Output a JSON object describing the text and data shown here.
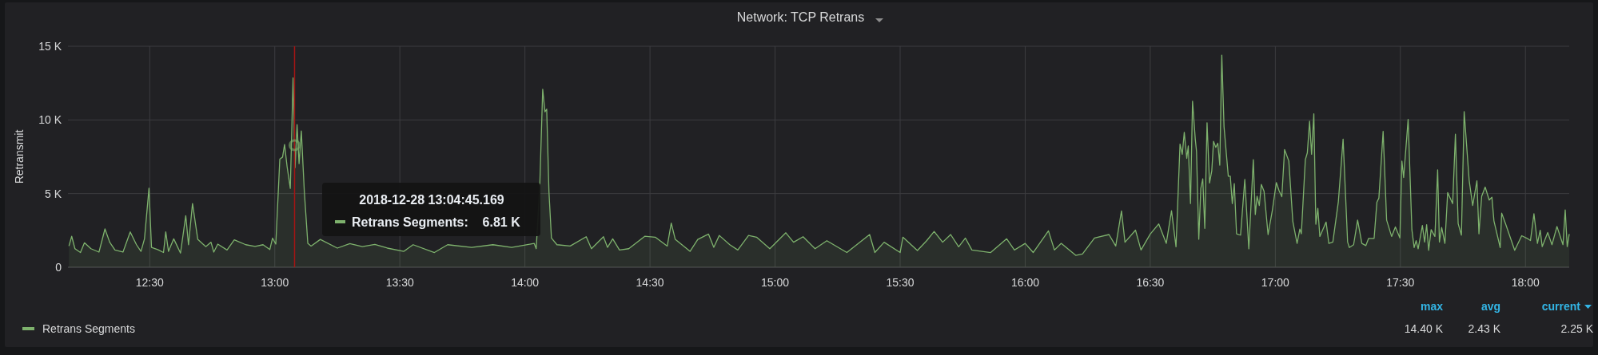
{
  "chart_data": {
    "type": "area",
    "title": "Network: TCP Retrans",
    "ylabel": "Retransmit",
    "x": [
      12.177,
      12.188,
      12.201,
      12.223,
      12.239,
      12.265,
      12.297,
      12.321,
      12.34,
      12.361,
      12.393,
      12.422,
      12.447,
      12.465,
      12.479,
      12.497,
      12.507,
      12.532,
      12.555,
      12.564,
      12.575,
      12.596,
      12.623,
      12.644,
      12.655,
      12.671,
      12.692,
      12.724,
      12.745,
      12.756,
      12.772,
      12.809,
      12.838,
      12.884,
      12.921,
      12.953,
      12.98,
      12.991,
      13.004,
      13.02,
      13.031,
      13.039,
      13.049,
      13.062,
      13.073,
      13.081,
      13.089,
      13.097,
      13.106,
      13.118,
      13.132,
      13.145,
      13.182,
      13.25,
      13.3,
      13.35,
      13.4,
      13.45,
      13.516,
      13.553,
      13.638,
      13.691,
      13.787,
      13.872,
      13.947,
      14.037,
      14.045,
      14.059,
      14.071,
      14.08,
      14.087,
      14.096,
      14.106,
      14.128,
      14.181,
      14.245,
      14.266,
      14.314,
      14.33,
      14.351,
      14.378,
      14.415,
      14.479,
      14.521,
      14.569,
      14.585,
      14.601,
      14.66,
      14.691,
      14.734,
      14.755,
      14.777,
      14.819,
      14.851,
      14.894,
      14.926,
      14.979,
      15.043,
      15.074,
      15.112,
      15.16,
      15.207,
      15.287,
      15.378,
      15.399,
      15.436,
      15.5,
      15.511,
      15.569,
      15.606,
      15.636,
      15.67,
      15.702,
      15.734,
      15.761,
      15.787,
      15.862,
      15.926,
      15.957,
      16.0,
      16.032,
      16.093,
      16.117,
      16.144,
      16.202,
      16.229,
      16.277,
      16.335,
      16.362,
      16.385,
      16.399,
      16.441,
      16.463,
      16.5,
      16.534,
      16.564,
      16.585,
      16.603,
      16.619,
      16.628,
      16.636,
      16.646,
      16.652,
      16.661,
      16.669,
      16.68,
      16.685,
      16.694,
      16.702,
      16.71,
      16.718,
      16.727,
      16.737,
      16.746,
      16.753,
      16.762,
      16.77,
      16.778,
      16.786,
      16.795,
      16.812,
      16.82,
      16.828,
      16.836,
      16.845,
      16.861,
      16.878,
      16.894,
      16.912,
      16.92,
      16.927,
      16.936,
      16.944,
      16.955,
      16.971,
      16.988,
      17.004,
      17.015,
      17.026,
      17.037,
      17.054,
      17.07,
      17.087,
      17.098,
      17.104,
      17.12,
      17.128,
      17.137,
      17.145,
      17.154,
      17.162,
      17.17,
      17.178,
      17.203,
      17.214,
      17.23,
      17.252,
      17.271,
      17.289,
      17.296,
      17.313,
      17.329,
      17.346,
      17.362,
      17.373,
      17.395,
      17.406,
      17.414,
      17.431,
      17.445,
      17.465,
      17.48,
      17.498,
      17.506,
      17.513,
      17.531,
      17.546,
      17.555,
      17.563,
      17.571,
      17.588,
      17.597,
      17.605,
      17.613,
      17.623,
      17.638,
      17.649,
      17.656,
      17.665,
      17.678,
      17.689,
      17.709,
      17.72,
      17.731,
      17.744,
      17.755,
      17.775,
      17.789,
      17.806,
      17.814,
      17.825,
      17.839,
      17.855,
      17.866,
      17.874,
      17.899,
      17.905,
      17.921,
      17.94,
      17.957,
      17.985,
      18.007,
      18.02,
      18.034,
      18.048,
      18.059,
      18.067,
      18.089,
      18.106,
      18.126,
      18.15,
      18.159,
      18.167,
      18.175
    ],
    "series": [
      {
        "name": "Retrans Segments",
        "color": "#7eb26d",
        "values": [
          1.44,
          2.1,
          1.26,
          1.0,
          1.66,
          1.26,
          1.03,
          2.6,
          1.7,
          1.17,
          1.03,
          2.4,
          1.53,
          1.08,
          1.93,
          5.37,
          1.35,
          1.2,
          1.0,
          2.4,
          1.08,
          1.93,
          0.96,
          3.5,
          1.53,
          4.33,
          1.9,
          1.4,
          1.7,
          1.03,
          1.57,
          1.17,
          1.86,
          1.53,
          1.42,
          1.53,
          1.2,
          1.98,
          1.57,
          7.34,
          7.48,
          8.33,
          6.85,
          5.35,
          12.85,
          6.76,
          9.68,
          7.03,
          9.25,
          5.14,
          1.62,
          1.44,
          1.89,
          1.3,
          1.6,
          1.4,
          1.55,
          1.3,
          1.08,
          1.53,
          1.0,
          1.53,
          1.35,
          1.53,
          1.35,
          1.62,
          1.26,
          5.32,
          12.08,
          10.55,
          10.73,
          5.14,
          1.98,
          1.53,
          1.44,
          2.07,
          1.26,
          2.07,
          1.35,
          1.93,
          1.17,
          1.26,
          2.1,
          2.04,
          1.44,
          3.0,
          1.89,
          1.08,
          1.89,
          2.25,
          1.35,
          2.16,
          1.53,
          1.17,
          2.16,
          2.04,
          1.26,
          2.34,
          1.7,
          2.07,
          1.26,
          1.8,
          1.0,
          2.22,
          1.0,
          1.7,
          1.0,
          2.04,
          1.14,
          1.8,
          2.43,
          1.7,
          2.22,
          1.39,
          1.98,
          1.17,
          1.0,
          1.93,
          1.17,
          1.62,
          1.0,
          2.47,
          1.17,
          1.62,
          0.81,
          0.9,
          1.98,
          2.22,
          1.44,
          3.82,
          1.7,
          2.52,
          1.17,
          2.25,
          2.94,
          1.62,
          3.84,
          1.39,
          8.36,
          7.67,
          9.16,
          7.39,
          8.23,
          4.32,
          11.27,
          8.7,
          7.86,
          1.9,
          5.34,
          6.0,
          2.64,
          9.81,
          5.72,
          6.55,
          8.55,
          8.14,
          8.42,
          6.93,
          14.4,
          9.53,
          6.18,
          6.18,
          4.32,
          5.68,
          2.27,
          2.18,
          5.96,
          1.25,
          7.3,
          3.58,
          4.82,
          4.19,
          5.62,
          5.16,
          2.22,
          3.85,
          5.75,
          5.2,
          4.79,
          7.99,
          7.21,
          3.11,
          1.62,
          2.59,
          2.27,
          7.3,
          7.77,
          9.91,
          7.67,
          10.41,
          2.92,
          4.0,
          2.09,
          3.07,
          1.62,
          1.71,
          4.45,
          8.7,
          1.71,
          1.34,
          1.53,
          3.2,
          1.62,
          1.47,
          1.96,
          1.96,
          4.41,
          4.69,
          9.22,
          3.2,
          2.09,
          2.74,
          1.99,
          7.21,
          6.09,
          10.04,
          2.55,
          1.34,
          1.81,
          1.25,
          2.83,
          1.71,
          2.89,
          1.15,
          2.55,
          2.09,
          6.61,
          1.71,
          2.7,
          1.62,
          5.07,
          4.32,
          9.03,
          2.96,
          2.18,
          10.56,
          5.9,
          4.19,
          5.87,
          2.27,
          4.82,
          5.44,
          4.56,
          4.75,
          3.15,
          1.34,
          3.67,
          2.92,
          1.99,
          1.15,
          2.14,
          1.96,
          1.81,
          3.63,
          1.62,
          2.51,
          1.4,
          2.36,
          1.53,
          2.77,
          1.53,
          3.89,
          1.4,
          2.25
        ]
      }
    ],
    "xlim": [
      12.173,
      18.175
    ],
    "xticks": [
      {
        "value": 12.5,
        "label": "12:30"
      },
      {
        "value": 13,
        "label": "13:00"
      },
      {
        "value": 13.5,
        "label": "13:30"
      },
      {
        "value": 14,
        "label": "14:00"
      },
      {
        "value": 14.5,
        "label": "14:30"
      },
      {
        "value": 15,
        "label": "15:00"
      },
      {
        "value": 15.5,
        "label": "15:30"
      },
      {
        "value": 16,
        "label": "16:00"
      },
      {
        "value": 16.5,
        "label": "16:30"
      },
      {
        "value": 17,
        "label": "17:00"
      },
      {
        "value": 17.5,
        "label": "17:30"
      },
      {
        "value": 18,
        "label": "18:00"
      }
    ],
    "ylim": [
      0,
      15
    ],
    "yticks": [
      0,
      {
        "value": 5,
        "label": "5 K"
      },
      {
        "value": 10,
        "label": "10 K"
      },
      {
        "value": 15,
        "label": "15 K"
      }
    ],
    "grid": true,
    "legend": "bottom left",
    "ref_lines": [
      {
        "axis": "x",
        "value": 13.079,
        "color": "#a31515"
      }
    ],
    "annotations": [
      "2018-12-28 13:04:45.169",
      "Retrans Segments:    6.81 K",
      "max",
      "avg",
      "current",
      "14.40 K",
      "2.43 K",
      "2.25 K"
    ]
  }
}
